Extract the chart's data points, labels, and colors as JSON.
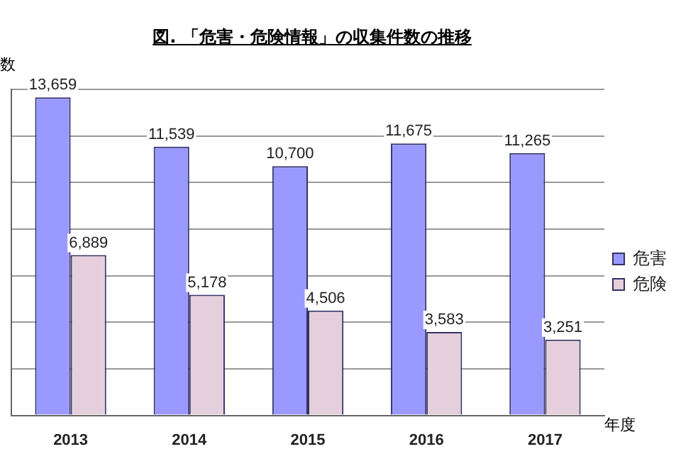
{
  "chart_data": {
    "type": "bar",
    "title": "図. 「危害・危険情報」の収集件数の推移",
    "ylabel": "数",
    "xlabel": "年度",
    "categories": [
      "2013",
      "2014",
      "2015",
      "2016",
      "2017"
    ],
    "series": [
      {
        "name": "危害",
        "color": "#9999ff",
        "values": [
          13659,
          11539,
          10700,
          11675,
          11265
        ],
        "value_labels": [
          "13,659",
          "11,539",
          "10,700",
          "11,675",
          "11,265"
        ]
      },
      {
        "name": "危険",
        "color": "#e6cfdc",
        "values": [
          6889,
          5178,
          4506,
          3583,
          3251
        ],
        "value_labels": [
          "6,889",
          "5,178",
          "4,506",
          "3,583",
          "3,251"
        ]
      }
    ],
    "tick_labels": "x",
    "grid": "y",
    "legend": "right"
  }
}
